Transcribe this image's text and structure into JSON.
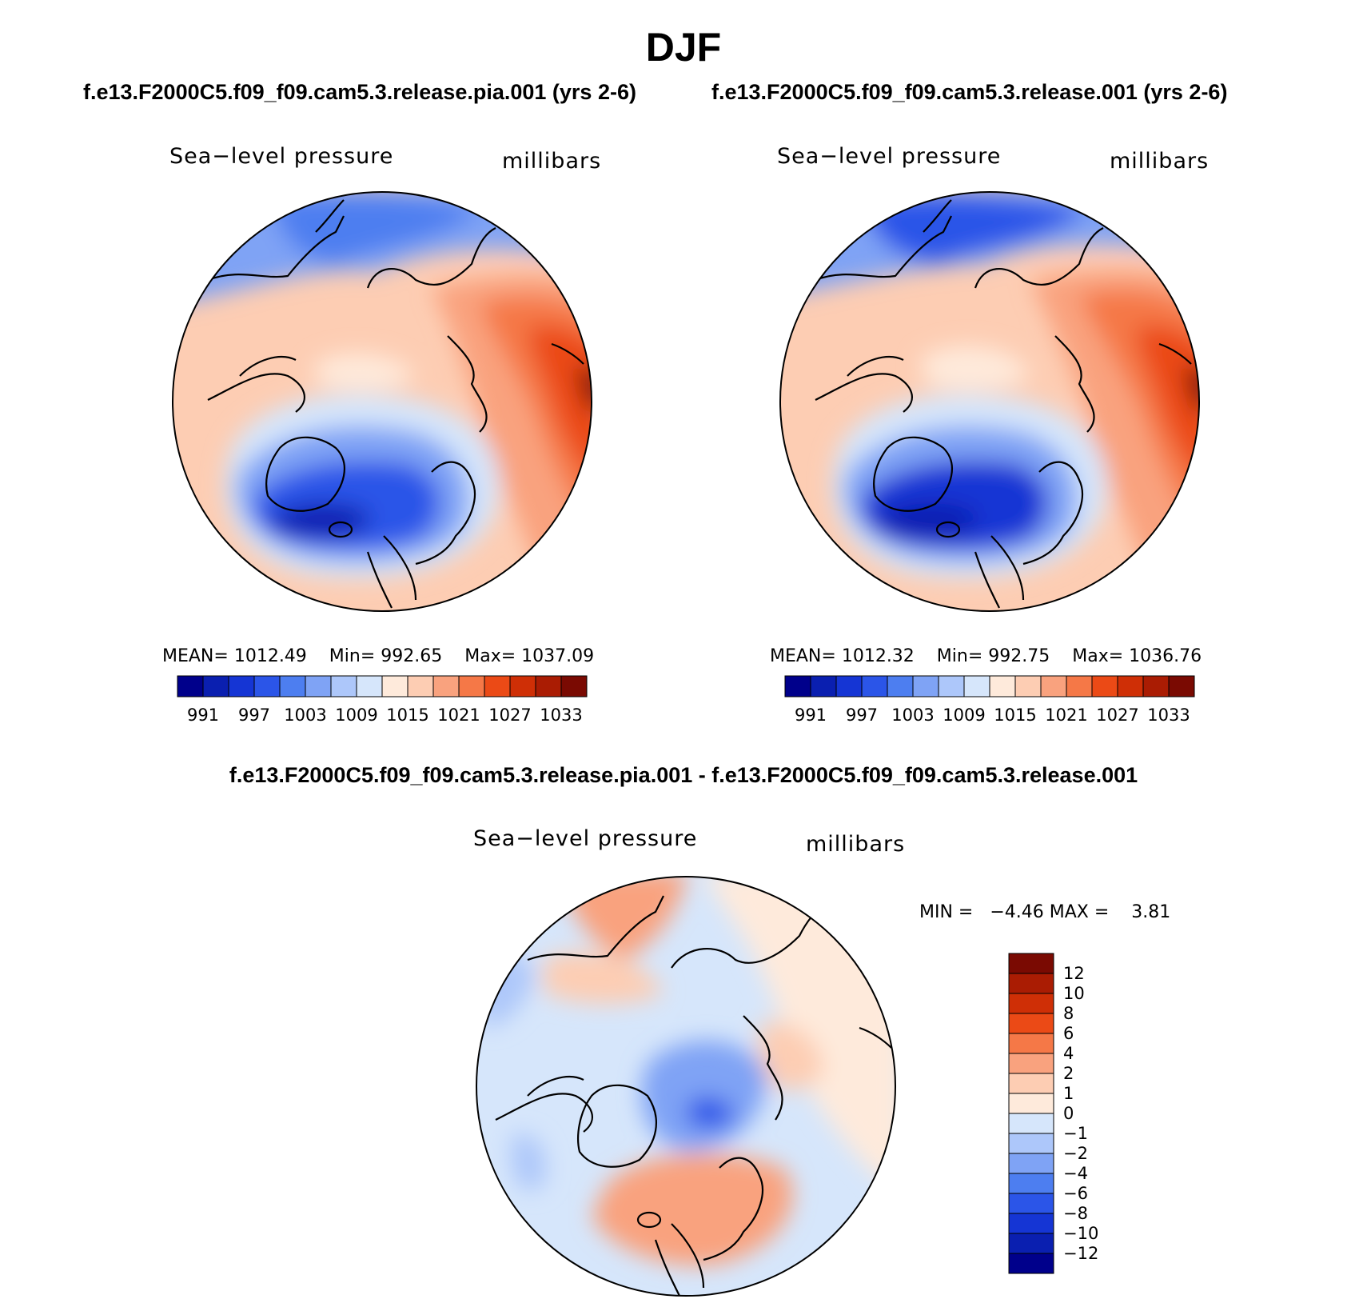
{
  "title": "DJF",
  "panels": [
    {
      "case_title": "f.e13.F2000C5.f09_f09.cam5.3.release.pia.001 (yrs 2-6)",
      "variable": "Sea−level pressure",
      "units": "millibars",
      "mean_label": "MEAN=",
      "mean": "1012.49",
      "min_label": "Min=",
      "min": "992.65",
      "max_label": "Max=",
      "max": "1037.09"
    },
    {
      "case_title": "f.e13.F2000C5.f09_f09.cam5.3.release.001 (yrs 2-6)",
      "variable": "Sea−level pressure",
      "units": "millibars",
      "mean_label": "MEAN=",
      "mean": "1012.32",
      "min_label": "Min=",
      "min": "992.75",
      "max_label": "Max=",
      "max": "1036.76"
    }
  ],
  "diff_panel": {
    "title": "f.e13.F2000C5.f09_f09.cam5.3.release.pia.001 - f.e13.F2000C5.f09_f09.cam5.3.release.001",
    "variable": "Sea−level pressure",
    "units": "millibars",
    "min_label": "MIN =",
    "min": "−4.46",
    "max_label": "MAX =",
    "max": "3.81"
  },
  "abs_colorbar": {
    "labels": [
      "991",
      "997",
      "1003",
      "1009",
      "1015",
      "1021",
      "1027",
      "1033"
    ],
    "colors": [
      "#00008b",
      "#0a1fb0",
      "#1535d4",
      "#2b55e8",
      "#4d7ef0",
      "#7fa3f5",
      "#adc7fa",
      "#d6e6fb",
      "#feeadb",
      "#fdcdb3",
      "#f9a27e",
      "#f57847",
      "#eb4a16",
      "#cf2f06",
      "#aa1c03",
      "#7a0a02"
    ]
  },
  "diff_colorbar": {
    "labels": [
      "12",
      "10",
      "8",
      "6",
      "4",
      "2",
      "1",
      "0",
      "−1",
      "−2",
      "−4",
      "−6",
      "−8",
      "−10",
      "−12"
    ],
    "colors": [
      "#7a0a02",
      "#aa1c03",
      "#cf2f06",
      "#eb4a16",
      "#f57847",
      "#f9a27e",
      "#fdcdb3",
      "#feeadb",
      "#d6e6fb",
      "#adc7fa",
      "#7fa3f5",
      "#4d7ef0",
      "#2b55e8",
      "#1535d4",
      "#0a1fb0",
      "#00008b"
    ]
  },
  "chart_data": {
    "type": "heatmap",
    "title": "DJF",
    "projection": "north polar stereographic",
    "variable": "Sea-level pressure",
    "units": "millibars",
    "panels": [
      {
        "name": "f.e13.F2000C5.f09_f09.cam5.3.release.pia.001 (yrs 2-6)",
        "mean": 1012.49,
        "min": 992.65,
        "max": 1037.09,
        "levels": [
          991,
          994,
          997,
          1000,
          1003,
          1006,
          1009,
          1012,
          1015,
          1018,
          1021,
          1024,
          1027,
          1030,
          1033
        ]
      },
      {
        "name": "f.e13.F2000C5.f09_f09.cam5.3.release.001 (yrs 2-6)",
        "mean": 1012.32,
        "min": 992.75,
        "max": 1036.76,
        "levels": [
          991,
          994,
          997,
          1000,
          1003,
          1006,
          1009,
          1012,
          1015,
          1018,
          1021,
          1024,
          1027,
          1030,
          1033
        ]
      },
      {
        "name": "f.e13.F2000C5.f09_f09.cam5.3.release.pia.001 - f.e13.F2000C5.f09_f09.cam5.3.release.001",
        "min": -4.46,
        "max": 3.81,
        "levels": [
          -12,
          -10,
          -8,
          -6,
          -4,
          -2,
          -1,
          0,
          1,
          2,
          4,
          6,
          8,
          10,
          12
        ]
      }
    ]
  }
}
